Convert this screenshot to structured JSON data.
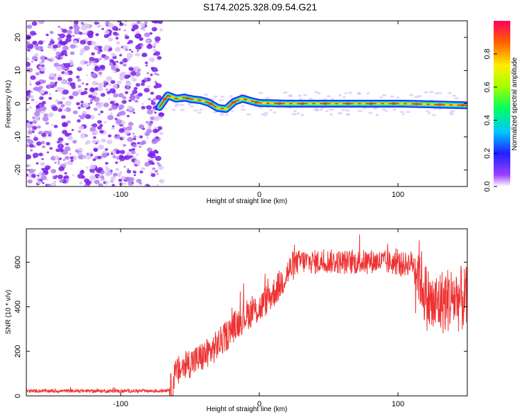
{
  "title": "S174.2025.328.09.54.G21",
  "colors": {
    "snr_line": "#ee3333",
    "track_core": "#e02020",
    "noise": "#7a2be6"
  },
  "chart_data": [
    {
      "id": "spectrogram",
      "type": "heatmap",
      "title": "S174.2025.328.09.54.G21",
      "xlabel": "Height of straight line (km)",
      "ylabel": "Frequency (Hz)",
      "xlim": [
        -168,
        150
      ],
      "ylim": [
        -25,
        25
      ],
      "xticks": [
        -100,
        0,
        100
      ],
      "yticks": [
        -20,
        -10,
        0,
        10,
        20
      ],
      "noise_region_x": [
        -168,
        -70
      ],
      "track": {
        "x": [
          -72,
          -66,
          -60,
          -54,
          -48,
          -42,
          -36,
          -30,
          -24,
          -18,
          -12,
          -6,
          0,
          20,
          60,
          100,
          104,
          150
        ],
        "freq": [
          -1,
          2.5,
          1.5,
          1.8,
          1.3,
          1.0,
          0.2,
          -1.3,
          -1.6,
          0.6,
          1.5,
          0.8,
          0.2,
          0.0,
          0.0,
          0.0,
          0.0,
          -0.5
        ]
      },
      "colorbar": {
        "label": "Normalized spectral amplitude",
        "ticks": [
          0.0,
          0.2,
          0.4,
          0.6,
          0.8
        ],
        "range": [
          0,
          1
        ]
      }
    },
    {
      "id": "snr",
      "type": "line",
      "xlabel": "Height of straight line (km)",
      "ylabel": "SNR (10 * v/v)",
      "xlim": [
        -168,
        150
      ],
      "ylim": [
        0,
        750
      ],
      "xticks": [
        -100,
        0,
        100
      ],
      "yticks": [
        0,
        200,
        400,
        600
      ],
      "series": [
        {
          "name": "SNR",
          "x": [
            -168,
            -140,
            -110,
            -80,
            -70,
            -64,
            -60,
            -55,
            -50,
            -45,
            -40,
            -35,
            -30,
            -25,
            -20,
            -15,
            -10,
            -5,
            0,
            5,
            10,
            15,
            20,
            25,
            30,
            40,
            50,
            60,
            70,
            80,
            90,
            100,
            105,
            110,
            115,
            120,
            125,
            130,
            140,
            150
          ],
          "values": [
            22,
            22,
            22,
            22,
            22,
            30,
            100,
            130,
            150,
            160,
            180,
            200,
            230,
            260,
            300,
            330,
            360,
            380,
            390,
            430,
            460,
            500,
            550,
            590,
            605,
            600,
            605,
            600,
            600,
            605,
            600,
            595,
            590,
            600,
            560,
            450,
            400,
            420,
            440,
            430
          ]
        }
      ]
    }
  ]
}
